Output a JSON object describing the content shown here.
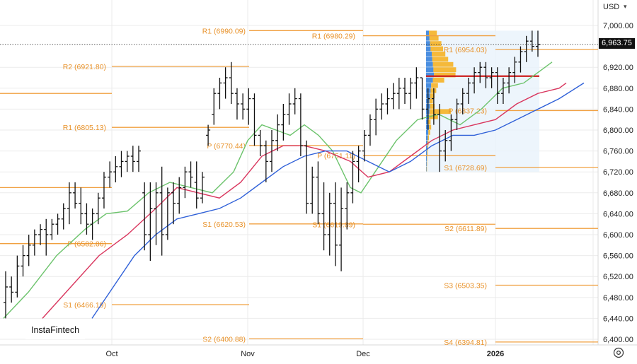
{
  "currency": "USD",
  "brand": "InstaFintech",
  "current_price_label": "6,963.75",
  "colors": {
    "grid": "#ebebeb",
    "level": "#f0a040",
    "level_text": "#e8922a",
    "pivot_red": "#cc1e1e",
    "sma_green": "#6cc36c",
    "sma_red": "#d9365e",
    "sma_blue": "#2f60d8",
    "profile_blue": "#4a8ee0",
    "profile_orange": "#f5b93a",
    "profile_box": "#e8f2fb",
    "bar": "#111111"
  },
  "chart_data": {
    "type": "ohlc",
    "y_axis": {
      "ticks": [
        6400,
        6440,
        6480,
        6520,
        6560,
        6600,
        6640,
        6680,
        6720,
        6760,
        6800,
        6840,
        6880,
        6920,
        7000
      ],
      "tick_labels": [
        "6,400.00",
        "6,440.00",
        "6,480.00",
        "6,520.00",
        "6,560.00",
        "6,600.00",
        "6,640.00",
        "6,680.00",
        "6,720.00",
        "6,760.00",
        "6,800.00",
        "6,840.00",
        "6,880.00",
        "6,920.00",
        "7,000.00"
      ],
      "range": [
        6390,
        7020
      ],
      "side": "right"
    },
    "x_axis": {
      "labels": [
        "Oct",
        "Nov",
        "Dec",
        "2026"
      ]
    },
    "current_price": 6963.75,
    "pivot_levels": [
      {
        "label": "R2 (6921.80)",
        "value": 6921.8
      },
      {
        "label": "R1 (6805.13)",
        "value": 6805.13
      },
      {
        "label": "P (6582.86)",
        "value": 6582.86
      },
      {
        "label": "S1 (6466.19)",
        "value": 6466.19
      },
      {
        "label": "",
        "value": 6870
      },
      {
        "label": "",
        "value": 6690
      },
      {
        "label": "R1 (6990.09)",
        "value": 6990.09
      },
      {
        "label": "P (6770.44)",
        "value": 6770.44
      },
      {
        "label": "S1 (6620.53)",
        "value": 6620.53
      },
      {
        "label": "S2 (6400.88)",
        "value": 6400.88
      },
      {
        "label": "R1 (6980.29)",
        "value": 6980.29
      },
      {
        "label": "P (6751.11)",
        "value": 6751.11
      },
      {
        "label": "S1 (6619.89)",
        "value": 6619.89
      },
      {
        "label": "R1 (6954.03)",
        "value": 6954.03
      },
      {
        "label": "P (6837.23)",
        "value": 6837.23
      },
      {
        "label": "S1 (6728.69)",
        "value": 6728.69
      },
      {
        "label": "S2 (6611.89)",
        "value": 6611.89
      },
      {
        "label": "S3 (6503.35)",
        "value": 6503.35
      },
      {
        "label": "S4 (6394.81)",
        "value": 6394.81
      }
    ],
    "volume_profile_poc": 6903,
    "volume_profile": [
      {
        "price": 6985,
        "blue": 0.25,
        "orange": 0.35
      },
      {
        "price": 6975,
        "blue": 0.3,
        "orange": 0.4
      },
      {
        "price": 6965,
        "blue": 0.35,
        "orange": 0.5
      },
      {
        "price": 6955,
        "blue": 0.4,
        "orange": 0.55
      },
      {
        "price": 6945,
        "blue": 0.5,
        "orange": 0.6
      },
      {
        "price": 6935,
        "blue": 0.55,
        "orange": 0.7
      },
      {
        "price": 6925,
        "blue": 0.6,
        "orange": 0.9
      },
      {
        "price": 6915,
        "blue": 0.65,
        "orange": 1.0
      },
      {
        "price": 6905,
        "blue": 0.7,
        "orange": 0.95
      },
      {
        "price": 6895,
        "blue": 0.6,
        "orange": 0.5
      },
      {
        "price": 6885,
        "blue": 0.45,
        "orange": 0.3
      },
      {
        "price": 6875,
        "blue": 0.4,
        "orange": 0.25
      },
      {
        "price": 6865,
        "blue": 0.35,
        "orange": 0.2
      },
      {
        "price": 6855,
        "blue": 0.3,
        "orange": 0.15
      },
      {
        "price": 6845,
        "blue": 0.35,
        "orange": 0.2
      },
      {
        "price": 6835,
        "blue": 0.3,
        "orange": 0.95
      },
      {
        "price": 6825,
        "blue": 0.25,
        "orange": 0.4
      },
      {
        "price": 6815,
        "blue": 0.2,
        "orange": 0.1
      },
      {
        "price": 6805,
        "blue": 0.25,
        "orange": 0.1
      },
      {
        "price": 6795,
        "blue": 0.2,
        "orange": 0.08
      },
      {
        "price": 6785,
        "blue": 0.15,
        "orange": 0.05
      },
      {
        "price": 6775,
        "blue": 0.12,
        "orange": 0.05
      },
      {
        "price": 6765,
        "blue": 0.1,
        "orange": 0.04
      },
      {
        "price": 6755,
        "blue": 0.08,
        "orange": 0.03
      },
      {
        "price": 6745,
        "blue": 0.06,
        "orange": 0.02
      },
      {
        "price": 6735,
        "blue": 0.05,
        "orange": 0.02
      },
      {
        "price": 6725,
        "blue": 0.04,
        "orange": 0.02
      }
    ],
    "ohlc": [
      [
        6470,
        6530,
        6440,
        6500
      ],
      [
        6500,
        6520,
        6470,
        6490
      ],
      [
        6490,
        6560,
        6480,
        6540
      ],
      [
        6540,
        6580,
        6520,
        6560
      ],
      [
        6560,
        6600,
        6540,
        6580
      ],
      [
        6580,
        6610,
        6560,
        6600
      ],
      [
        6600,
        6620,
        6580,
        6610
      ],
      [
        6610,
        6630,
        6560,
        6600
      ],
      [
        6600,
        6630,
        6590,
        6620
      ],
      [
        6620,
        6640,
        6600,
        6630
      ],
      [
        6630,
        6660,
        6610,
        6650
      ],
      [
        6650,
        6700,
        6620,
        6680
      ],
      [
        6680,
        6700,
        6650,
        6660
      ],
      [
        6660,
        6690,
        6620,
        6640
      ],
      [
        6640,
        6660,
        6600,
        6620
      ],
      [
        6620,
        6650,
        6590,
        6640
      ],
      [
        6640,
        6680,
        6620,
        6670
      ],
      [
        6670,
        6720,
        6650,
        6710
      ],
      [
        6710,
        6740,
        6690,
        6720
      ],
      [
        6720,
        6750,
        6700,
        6730
      ],
      [
        6730,
        6760,
        6710,
        6740
      ],
      [
        6740,
        6760,
        6720,
        6750
      ],
      [
        6750,
        6770,
        6720,
        6740
      ],
      [
        6740,
        6770,
        6720,
        6760
      ],
      [
        6680,
        6700,
        6570,
        6600
      ],
      [
        6600,
        6700,
        6550,
        6650
      ],
      [
        6650,
        6700,
        6580,
        6680
      ],
      [
        6680,
        6730,
        6560,
        6600
      ],
      [
        6600,
        6690,
        6590,
        6680
      ],
      [
        6680,
        6700,
        6620,
        6660
      ],
      [
        6660,
        6710,
        6640,
        6690
      ],
      [
        6690,
        6730,
        6670,
        6720
      ],
      [
        6720,
        6740,
        6690,
        6710
      ],
      [
        6700,
        6740,
        6650,
        6670
      ],
      [
        6670,
        6720,
        6660,
        6710
      ],
      [
        6790,
        6810,
        6770,
        6800
      ],
      [
        6830,
        6880,
        6810,
        6870
      ],
      [
        6870,
        6900,
        6840,
        6890
      ],
      [
        6890,
        6920,
        6860,
        6900
      ],
      [
        6900,
        6930,
        6850,
        6870
      ],
      [
        6870,
        6880,
        6820,
        6850
      ],
      [
        6850,
        6870,
        6820,
        6840
      ],
      [
        6840,
        6880,
        6810,
        6860
      ],
      [
        6860,
        6870,
        6770,
        6790
      ],
      [
        6790,
        6800,
        6750,
        6770
      ],
      [
        6770,
        6780,
        6700,
        6740
      ],
      [
        6740,
        6800,
        6720,
        6780
      ],
      [
        6780,
        6830,
        6760,
        6810
      ],
      [
        6810,
        6850,
        6780,
        6830
      ],
      [
        6830,
        6870,
        6810,
        6850
      ],
      [
        6850,
        6880,
        6830,
        6860
      ],
      [
        6860,
        6870,
        6750,
        6770
      ],
      [
        6770,
        6780,
        6640,
        6660
      ],
      [
        6660,
        6730,
        6640,
        6710
      ],
      [
        6710,
        6740,
        6620,
        6640
      ],
      [
        6640,
        6700,
        6570,
        6600
      ],
      [
        6600,
        6680,
        6560,
        6660
      ],
      [
        6660,
        6700,
        6540,
        6580
      ],
      [
        6580,
        6690,
        6530,
        6650
      ],
      [
        6650,
        6700,
        6610,
        6680
      ],
      [
        6680,
        6760,
        6660,
        6740
      ],
      [
        6740,
        6770,
        6700,
        6760
      ],
      [
        6760,
        6800,
        6740,
        6790
      ],
      [
        6790,
        6830,
        6770,
        6820
      ],
      [
        6820,
        6860,
        6790,
        6840
      ],
      [
        6840,
        6870,
        6820,
        6850
      ],
      [
        6850,
        6880,
        6830,
        6860
      ],
      [
        6860,
        6890,
        6840,
        6870
      ],
      [
        6870,
        6900,
        6840,
        6880
      ],
      [
        6880,
        6900,
        6850,
        6870
      ],
      [
        6870,
        6900,
        6840,
        6890
      ],
      [
        6890,
        6920,
        6860,
        6900
      ],
      [
        6900,
        6900,
        6820,
        6840
      ],
      [
        6840,
        6880,
        6800,
        6860
      ],
      [
        6860,
        6880,
        6810,
        6830
      ],
      [
        6830,
        6850,
        6720,
        6760
      ],
      [
        6760,
        6800,
        6740,
        6780
      ],
      [
        6780,
        6830,
        6760,
        6820
      ],
      [
        6820,
        6860,
        6800,
        6850
      ],
      [
        6850,
        6880,
        6830,
        6870
      ],
      [
        6870,
        6900,
        6850,
        6890
      ],
      [
        6890,
        6920,
        6870,
        6910
      ],
      [
        6910,
        6930,
        6890,
        6920
      ],
      [
        6920,
        6930,
        6880,
        6900
      ],
      [
        6900,
        6920,
        6880,
        6910
      ],
      [
        6910,
        6920,
        6850,
        6870
      ],
      [
        6870,
        6900,
        6850,
        6890
      ],
      [
        6890,
        6920,
        6870,
        6910
      ],
      [
        6910,
        6940,
        6890,
        6930
      ],
      [
        6930,
        6960,
        6910,
        6950
      ],
      [
        6950,
        6980,
        6930,
        6970
      ],
      [
        6970,
        6990,
        6950,
        6960
      ],
      [
        6960,
        6990,
        6940,
        6964
      ]
    ],
    "sma_green": [
      [
        5,
        6440
      ],
      [
        40,
        6490
      ],
      [
        80,
        6560
      ],
      [
        120,
        6610
      ],
      [
        150,
        6640
      ],
      [
        180,
        6645
      ],
      [
        210,
        6680
      ],
      [
        240,
        6700
      ],
      [
        270,
        6690
      ],
      [
        300,
        6680
      ],
      [
        330,
        6720
      ],
      [
        350,
        6780
      ],
      [
        370,
        6810
      ],
      [
        390,
        6800
      ],
      [
        410,
        6790
      ],
      [
        430,
        6810
      ],
      [
        450,
        6790
      ],
      [
        470,
        6760
      ],
      [
        495,
        6690
      ],
      [
        510,
        6680
      ],
      [
        530,
        6720
      ],
      [
        560,
        6780
      ],
      [
        590,
        6820
      ],
      [
        620,
        6830
      ],
      [
        650,
        6810
      ],
      [
        680,
        6840
      ],
      [
        710,
        6880
      ],
      [
        740,
        6890
      ],
      [
        760,
        6910
      ],
      [
        780,
        6930
      ]
    ],
    "sma_red": [
      [
        60,
        6440
      ],
      [
        100,
        6500
      ],
      [
        140,
        6560
      ],
      [
        180,
        6600
      ],
      [
        220,
        6650
      ],
      [
        250,
        6690
      ],
      [
        280,
        6680
      ],
      [
        310,
        6670
      ],
      [
        340,
        6700
      ],
      [
        370,
        6750
      ],
      [
        400,
        6770
      ],
      [
        430,
        6770
      ],
      [
        460,
        6760
      ],
      [
        495,
        6740
      ],
      [
        520,
        6710
      ],
      [
        550,
        6720
      ],
      [
        580,
        6750
      ],
      [
        610,
        6780
      ],
      [
        640,
        6800
      ],
      [
        670,
        6810
      ],
      [
        700,
        6820
      ],
      [
        730,
        6850
      ],
      [
        760,
        6870
      ],
      [
        790,
        6880
      ],
      [
        800,
        6890
      ]
    ],
    "sma_blue": [
      [
        130,
        6440
      ],
      [
        160,
        6500
      ],
      [
        190,
        6560
      ],
      [
        220,
        6600
      ],
      [
        250,
        6630
      ],
      [
        280,
        6640
      ],
      [
        310,
        6650
      ],
      [
        340,
        6670
      ],
      [
        370,
        6700
      ],
      [
        400,
        6730
      ],
      [
        430,
        6750
      ],
      [
        460,
        6760
      ],
      [
        490,
        6760
      ],
      [
        520,
        6740
      ],
      [
        550,
        6720
      ],
      [
        580,
        6740
      ],
      [
        610,
        6770
      ],
      [
        640,
        6790
      ],
      [
        670,
        6790
      ],
      [
        700,
        6800
      ],
      [
        730,
        6820
      ],
      [
        760,
        6840
      ],
      [
        790,
        6860
      ],
      [
        825,
        6890
      ]
    ]
  }
}
